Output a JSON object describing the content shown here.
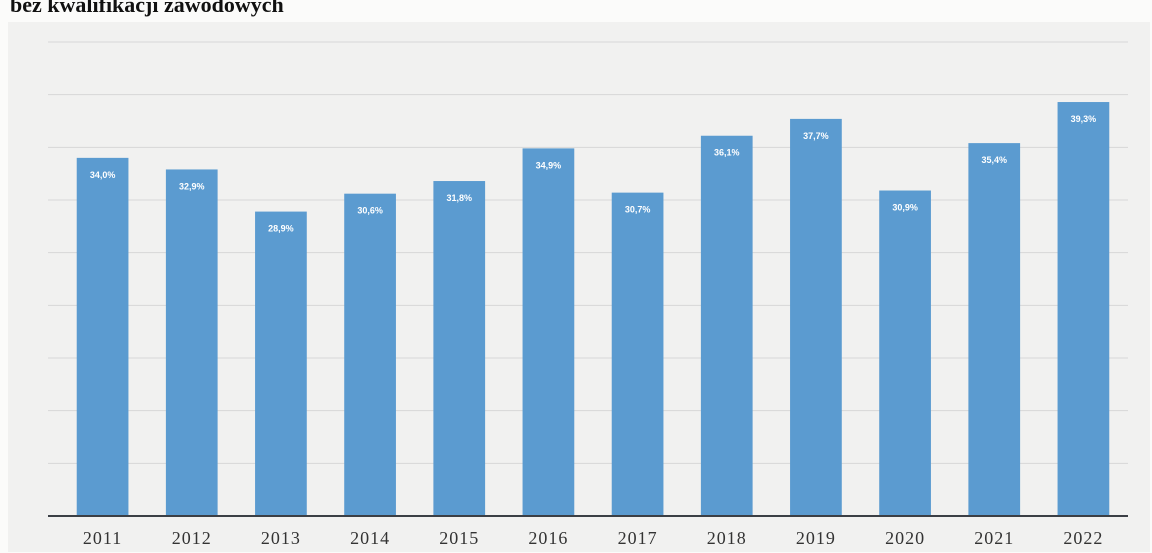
{
  "title": "bez kwalifikacji zawodowych",
  "chart_data": {
    "type": "bar",
    "title": "bez kwalifikacji zawodowych",
    "xlabel": "",
    "ylabel": "",
    "categories": [
      "2011",
      "2012",
      "2013",
      "2014",
      "2015",
      "2016",
      "2017",
      "2018",
      "2019",
      "2020",
      "2021",
      "2022"
    ],
    "values": [
      34.0,
      32.9,
      28.9,
      30.6,
      31.8,
      34.9,
      30.7,
      36.1,
      37.7,
      30.9,
      35.4,
      39.3
    ],
    "data_labels": [
      "34,0%",
      "32,9%",
      "28,9%",
      "30,6%",
      "31,8%",
      "34,9%",
      "30,7%",
      "36,1%",
      "37,7%",
      "30,9%",
      "35,4%",
      "39,3%"
    ],
    "ylim": [
      0,
      45
    ],
    "grid": true,
    "bar_color": "#5b9bd0",
    "legend": "none"
  }
}
